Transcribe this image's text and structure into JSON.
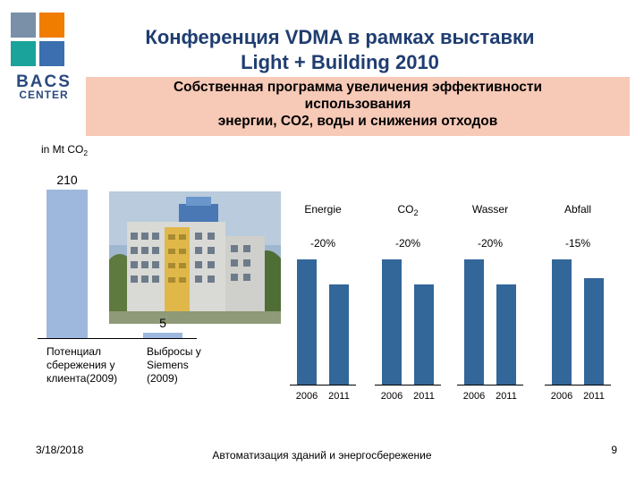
{
  "header": {
    "title_line1": "Конференция VDMA  в рамках выставки",
    "title_line2": "Light + Building 2010"
  },
  "logo": {
    "line1": "BACS",
    "line2": "CENTER",
    "colors": [
      "#7a8fa8",
      "#f07c00",
      "#1aa39a",
      "#3b6fb0"
    ]
  },
  "banner": {
    "line1": "Собственная программа увеличения эффективности",
    "line2": "использования",
    "line3_prefix": "энергии, CO2, воды и снижения отходов"
  },
  "colors": {
    "left_bars": "#9db8dc",
    "right_bars": "#336699",
    "banner": "#f7c9b7",
    "title": "#1f3d70"
  },
  "chart_data": [
    {
      "type": "bar",
      "unit_label_prefix": "in Mt CO",
      "unit_label_sub": "2",
      "categories": [
        "Потенциал сбережения у клиента(2009)",
        "Выбросы у Siemens (2009)"
      ],
      "category_lines": [
        [
          "Потенциал",
          "сбережения у",
          "клиента(2009)"
        ],
        [
          "Выбросы у",
          "Siemens",
          "(2009)"
        ]
      ],
      "values": [
        210,
        5
      ],
      "data_labels": [
        "210",
        "5"
      ],
      "ylim": [
        0,
        210
      ]
    },
    {
      "type": "bar",
      "groups": [
        {
          "name": "Energie",
          "name_sub": "",
          "change": "-20%",
          "x": [
            "2006",
            "2011"
          ],
          "values": [
            100,
            80
          ]
        },
        {
          "name": "CO",
          "name_sub": "2",
          "change": "-20%",
          "x": [
            "2006",
            "2011"
          ],
          "values": [
            100,
            80
          ]
        },
        {
          "name": "Wasser",
          "name_sub": "",
          "change": "-20%",
          "x": [
            "2006",
            "2011"
          ],
          "values": [
            100,
            80
          ]
        },
        {
          "name": "Abfall",
          "name_sub": "",
          "change": "-15%",
          "x": [
            "2006",
            "2011"
          ],
          "values": [
            100,
            85
          ]
        }
      ],
      "ylim": [
        0,
        100
      ]
    }
  ],
  "footer": {
    "date": "3/18/2018",
    "center": "Автоматизация зданий и энергосбережение",
    "page": "9"
  }
}
